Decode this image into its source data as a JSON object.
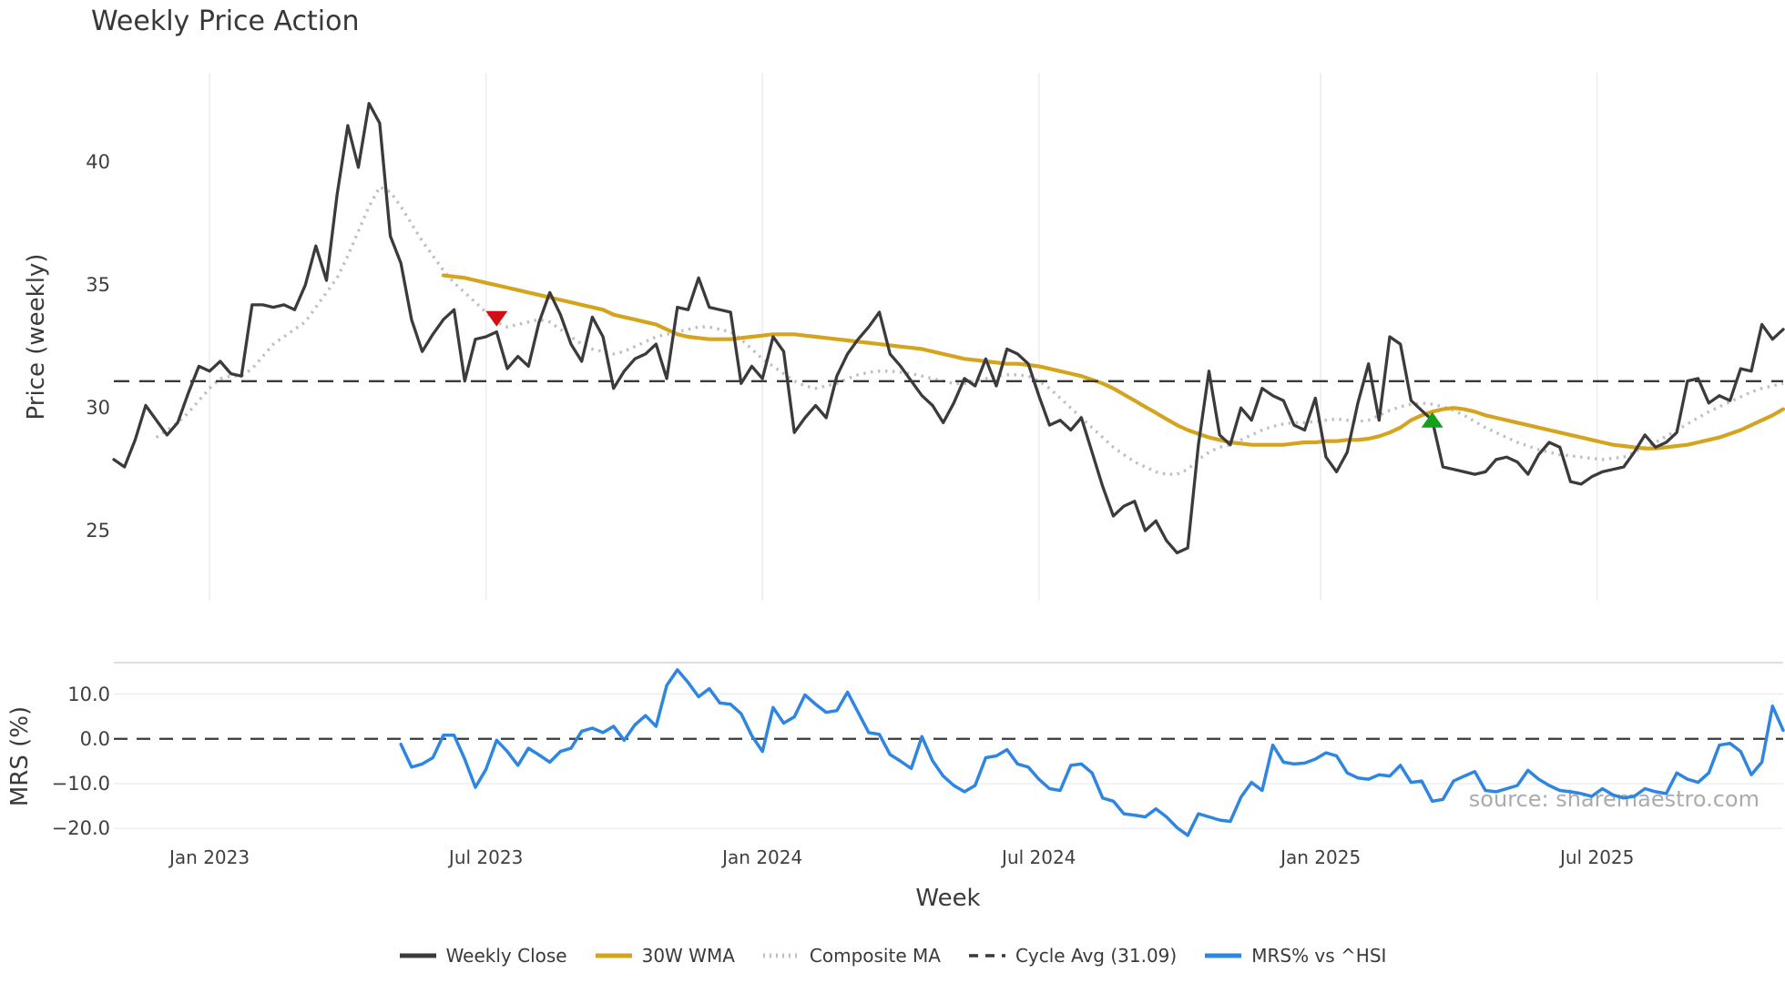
{
  "title": "Weekly Price Action",
  "watermark": "source: sharemaestro.com",
  "colors": {
    "close": "#3b3b3d",
    "wma": "#d5a41e",
    "composite": "#bfbfbf",
    "cycle_avg": "#39393b",
    "mrs": "#2e86e0",
    "grid": "#ededf2",
    "spine": "#d3d3d8",
    "sell_marker": "#cc1016",
    "buy_marker": "#16a01a",
    "text": "#3a3a3a",
    "watermark_color": "#ababad"
  },
  "legend": [
    {
      "name": "weekly-close",
      "label": "Weekly Close",
      "swatch": "solid",
      "color": "#3b3b3d"
    },
    {
      "name": "wma-30w",
      "label": "30W WMA",
      "swatch": "solid",
      "color": "#d5a41e"
    },
    {
      "name": "composite-ma",
      "label": "Composite MA",
      "swatch": "dotted",
      "color": "#bfbfbf"
    },
    {
      "name": "cycle-avg",
      "label": "Cycle Avg (31.09)",
      "swatch": "dashed",
      "color": "#39393b"
    },
    {
      "name": "mrs-hsi",
      "label": "MRS% vs ^HSI",
      "swatch": "solid",
      "color": "#2e86e0"
    }
  ],
  "chart_data": {
    "type": "line",
    "x_axis": {
      "label": "Week",
      "total_weeks": 157,
      "ticks": [
        {
          "label": "Jan 2023",
          "week": 9
        },
        {
          "label": "Jul 2023",
          "week": 35
        },
        {
          "label": "Jan 2024",
          "week": 61
        },
        {
          "label": "Jul 2024",
          "week": 87
        },
        {
          "label": "Jan 2025",
          "week": 113.5
        },
        {
          "label": "Jul 2025",
          "week": 139.5
        }
      ]
    },
    "price_panel": {
      "ylabel": "Price (weekly)",
      "ylim": [
        22.15,
        43.65
      ],
      "grid": "vertical-only",
      "cycle_avg": 31.09,
      "yticks": [
        {
          "value": 25,
          "label": "25"
        },
        {
          "value": 30,
          "label": "30"
        },
        {
          "value": 35,
          "label": "35"
        },
        {
          "value": 40,
          "label": "40"
        }
      ],
      "series": [
        {
          "name": "Weekly Close",
          "start_week": 0,
          "values": [
            27.9,
            27.6,
            28.7,
            30.1,
            29.5,
            28.9,
            29.4,
            30.6,
            31.7,
            31.5,
            31.9,
            31.4,
            31.3,
            34.2,
            34.2,
            34.1,
            34.2,
            34.0,
            35.0,
            36.6,
            35.2,
            38.7,
            41.5,
            39.8,
            42.4,
            41.6,
            37.0,
            35.9,
            33.6,
            32.3,
            33.0,
            33.6,
            34.0,
            31.1,
            32.8,
            32.9,
            33.1,
            31.6,
            32.1,
            31.7,
            33.5,
            34.7,
            33.8,
            32.6,
            31.9,
            33.7,
            32.9,
            30.8,
            31.5,
            32.0,
            32.2,
            32.6,
            31.2,
            34.1,
            34.0,
            35.3,
            34.1,
            34.0,
            33.9,
            31.0,
            31.7,
            31.2,
            32.9,
            32.3,
            29.0,
            29.6,
            30.1,
            29.6,
            31.3,
            32.2,
            32.8,
            33.3,
            33.9,
            32.2,
            31.7,
            31.1,
            30.5,
            30.1,
            29.4,
            30.2,
            31.2,
            30.9,
            32.0,
            30.9,
            32.4,
            32.2,
            31.8,
            30.5,
            29.3,
            29.5,
            29.1,
            29.6,
            28.2,
            26.8,
            25.6,
            26.0,
            26.2,
            25.0,
            25.4,
            24.6,
            24.1,
            24.3,
            28.5,
            31.5,
            28.9,
            28.5,
            30.0,
            29.5,
            30.8,
            30.5,
            30.3,
            29.3,
            29.1,
            30.4,
            28.0,
            27.4,
            28.2,
            30.2,
            31.8,
            29.5,
            32.9,
            32.6,
            30.3,
            29.9,
            29.5,
            27.6,
            27.5,
            27.4,
            27.3,
            27.4,
            27.9,
            28.0,
            27.8,
            27.3,
            28.1,
            28.6,
            28.4,
            27.0,
            26.9,
            27.2,
            27.4,
            27.5,
            27.6,
            28.2,
            28.9,
            28.4,
            28.6,
            29.0,
            31.1,
            31.2,
            30.2,
            30.5,
            30.3,
            31.6,
            31.5,
            33.4,
            32.8,
            33.2
          ]
        },
        {
          "name": "30W WMA",
          "start_week": 31,
          "values": [
            35.4,
            35.35,
            35.3,
            35.2,
            35.1,
            35.0,
            34.9,
            34.8,
            34.7,
            34.6,
            34.5,
            34.4,
            34.3,
            34.2,
            34.1,
            34.0,
            33.8,
            33.7,
            33.6,
            33.5,
            33.4,
            33.2,
            33.0,
            32.9,
            32.85,
            32.8,
            32.8,
            32.8,
            32.85,
            32.9,
            32.95,
            33.0,
            33.0,
            33.0,
            32.95,
            32.9,
            32.85,
            32.8,
            32.75,
            32.7,
            32.65,
            32.6,
            32.55,
            32.5,
            32.45,
            32.4,
            32.3,
            32.2,
            32.1,
            32.0,
            31.95,
            31.9,
            31.85,
            31.8,
            31.8,
            31.75,
            31.7,
            31.6,
            31.5,
            31.4,
            31.3,
            31.15,
            31.0,
            30.8,
            30.55,
            30.3,
            30.05,
            29.8,
            29.55,
            29.3,
            29.1,
            28.95,
            28.8,
            28.7,
            28.6,
            28.55,
            28.5,
            28.5,
            28.5,
            28.5,
            28.55,
            28.6,
            28.6,
            28.65,
            28.65,
            28.7,
            28.7,
            28.75,
            28.85,
            29.0,
            29.2,
            29.5,
            29.7,
            29.85,
            29.95,
            30.0,
            29.95,
            29.85,
            29.7,
            29.6,
            29.5,
            29.4,
            29.3,
            29.2,
            29.1,
            29.0,
            28.9,
            28.8,
            28.7,
            28.6,
            28.5,
            28.45,
            28.4,
            28.35,
            28.35,
            28.4,
            28.45,
            28.5,
            28.6,
            28.7,
            28.8,
            28.95,
            29.1,
            29.3,
            29.5,
            29.7,
            29.95
          ]
        },
        {
          "name": "Composite MA",
          "start_week": 4,
          "values": [
            28.8,
            29.1,
            29.4,
            29.8,
            30.3,
            30.8,
            31.2,
            31.3,
            31.3,
            31.6,
            32.1,
            32.6,
            32.9,
            33.2,
            33.5,
            34.1,
            34.7,
            35.3,
            36.2,
            37.2,
            38.2,
            39.0,
            38.8,
            38.2,
            37.5,
            36.8,
            36.2,
            35.6,
            35.1,
            34.7,
            34.3,
            33.9,
            33.5,
            33.3,
            33.4,
            33.5,
            33.6,
            33.5,
            33.2,
            32.9,
            32.6,
            32.4,
            32.3,
            32.2,
            32.3,
            32.5,
            32.7,
            32.9,
            33.0,
            33.1,
            33.2,
            33.3,
            33.3,
            33.2,
            33.1,
            32.8,
            32.4,
            32.0,
            31.7,
            31.4,
            31.1,
            30.9,
            30.8,
            30.9,
            31.0,
            31.2,
            31.35,
            31.45,
            31.5,
            31.5,
            31.45,
            31.4,
            31.3,
            31.2,
            31.1,
            31.0,
            31.0,
            31.1,
            31.2,
            31.3,
            31.35,
            31.35,
            31.3,
            31.1,
            30.8,
            30.4,
            30.0,
            29.6,
            29.2,
            28.8,
            28.4,
            28.1,
            27.8,
            27.6,
            27.4,
            27.3,
            27.3,
            27.5,
            27.9,
            28.2,
            28.4,
            28.5,
            28.7,
            28.9,
            29.1,
            29.25,
            29.35,
            29.4,
            29.4,
            29.45,
            29.5,
            29.55,
            29.5,
            29.45,
            29.5,
            29.7,
            29.9,
            30.05,
            30.15,
            30.2,
            30.15,
            30.05,
            29.9,
            29.7,
            29.45,
            29.2,
            29.0,
            28.8,
            28.6,
            28.45,
            28.3,
            28.2,
            28.1,
            28.05,
            28.0,
            27.95,
            27.9,
            27.95,
            28.0,
            28.2,
            28.4,
            28.6,
            28.85,
            29.1,
            29.35,
            29.6,
            29.85,
            30.05,
            30.25,
            30.45,
            30.65,
            30.8,
            30.9,
            31.0
          ]
        }
      ],
      "markers": [
        {
          "type": "sell",
          "shape": "triangle-down",
          "week": 36,
          "price": 33.65
        },
        {
          "type": "buy",
          "shape": "triangle-up",
          "week": 124,
          "price": 29.5
        }
      ]
    },
    "mrs_panel": {
      "ylabel": "MRS (%)",
      "ylim": [
        -25,
        17
      ],
      "zero_line": 0,
      "gridlines": [
        10,
        -10,
        -20
      ],
      "yticks": [
        {
          "value": 10,
          "label": "10.0"
        },
        {
          "value": 0,
          "label": "0.0"
        },
        {
          "value": -10,
          "label": "−10.0"
        },
        {
          "value": -20,
          "label": "−20.0"
        }
      ],
      "series": [
        {
          "name": "MRS% vs ^HSI",
          "start_week": 27,
          "values": [
            -1.2,
            -6.3,
            -5.6,
            -4.2,
            0.8,
            0.8,
            -4.5,
            -10.8,
            -6.8,
            -0.3,
            -2.8,
            -5.9,
            -2.1,
            -3.6,
            -5.2,
            -2.8,
            -2.1,
            1.7,
            2.4,
            1.4,
            2.8,
            -0.3,
            3.1,
            5.2,
            2.8,
            11.9,
            15.4,
            12.6,
            9.4,
            11.2,
            8.0,
            7.7,
            5.6,
            0.7,
            -2.8,
            7.0,
            3.5,
            4.9,
            9.8,
            7.7,
            5.9,
            6.3,
            10.4,
            5.9,
            1.4,
            1.0,
            -3.5,
            -5.0,
            -6.6,
            0.5,
            -4.9,
            -8.3,
            -10.4,
            -11.8,
            -10.4,
            -4.2,
            -3.8,
            -2.4,
            -5.6,
            -6.3,
            -9.0,
            -11.1,
            -11.5,
            -5.9,
            -5.6,
            -7.6,
            -13.2,
            -13.9,
            -16.7,
            -17.0,
            -17.4,
            -15.6,
            -17.4,
            -19.8,
            -21.5,
            -16.7,
            -17.4,
            -18.1,
            -18.4,
            -13.0,
            -9.7,
            -11.5,
            -1.4,
            -5.2,
            -5.6,
            -5.4,
            -4.5,
            -3.1,
            -3.8,
            -7.6,
            -8.7,
            -9.0,
            -8.0,
            -8.3,
            -5.9,
            -9.7,
            -9.4,
            -13.9,
            -13.5,
            -9.4,
            -8.3,
            -7.3,
            -11.5,
            -11.8,
            -11.1,
            -10.4,
            -7.0,
            -9.0,
            -10.4,
            -11.5,
            -11.8,
            -12.2,
            -12.8,
            -11.1,
            -12.5,
            -13.2,
            -12.8,
            -11.1,
            -11.8,
            -12.2,
            -7.6,
            -9.0,
            -9.7,
            -7.6,
            -1.4,
            -1.0,
            -2.8,
            -8.0,
            -5.2,
            7.3,
            1.9
          ]
        }
      ]
    }
  }
}
